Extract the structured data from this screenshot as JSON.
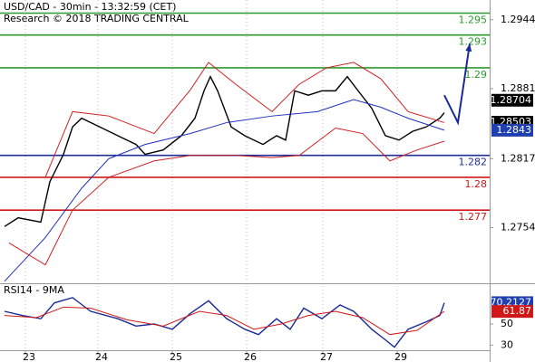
{
  "chart_data": [
    {
      "type": "line",
      "title": "USD/CAD - 30min - 13:32:59 (CET)",
      "subtitle": "Research © 2018 TRADING CENTRAL",
      "xlim": [
        0,
        108
      ],
      "ylim": [
        1.2704,
        1.2962
      ],
      "yticks": [
        1.2944,
        1.2881,
        1.2817,
        1.2754
      ],
      "xticks": [
        {
          "value": 5.6,
          "label": "23"
        },
        {
          "value": 21.6,
          "label": "24"
        },
        {
          "value": 38,
          "label": "25"
        },
        {
          "value": 54.4,
          "label": "26"
        },
        {
          "value": 71.2,
          "label": "27"
        },
        {
          "value": 87.6,
          "label": "29"
        }
      ],
      "levels": [
        {
          "value": 1.295,
          "color": "#2e9a2e"
        },
        {
          "value": 1.293,
          "color": "#2e9a2e"
        },
        {
          "value": 1.29,
          "color": "#2e9a2e"
        },
        {
          "value": 1.282,
          "color": "#1f2f9a"
        },
        {
          "value": 1.28,
          "color": "#d01818"
        },
        {
          "value": 1.277,
          "color": "#d01818"
        }
      ],
      "price_tags": [
        {
          "value": 1.28704,
          "color": "#000000"
        },
        {
          "value": 1.28503,
          "color": "#000000"
        },
        {
          "value": 1.2843,
          "color": "#1f3fb0"
        }
      ],
      "series": [
        {
          "name": "Price",
          "color": "#000000",
          "x": [
            1,
            4,
            9,
            11,
            14,
            16,
            18,
            22,
            26,
            30,
            32,
            36,
            40,
            43,
            45,
            46.4,
            48,
            51,
            54,
            58,
            61,
            63,
            65,
            68,
            71,
            74,
            76.6,
            79,
            82,
            85,
            88,
            91,
            94,
            97,
            98
          ],
          "values": [
            1.2755,
            1.2763,
            1.2759,
            1.2796,
            1.2821,
            1.2846,
            1.2854,
            1.2846,
            1.2838,
            1.283,
            1.2821,
            1.2825,
            1.2838,
            1.2854,
            1.2879,
            1.2892,
            1.2879,
            1.2846,
            1.2838,
            1.283,
            1.2838,
            1.2834,
            1.2879,
            1.2875,
            1.2879,
            1.2879,
            1.2892,
            1.2879,
            1.2863,
            1.2838,
            1.2834,
            1.2842,
            1.2846,
            1.2854,
            1.2859
          ]
        },
        {
          "name": "Moving average",
          "color": "#2030c0",
          "x": [
            1,
            10,
            18,
            24,
            32,
            42,
            50,
            60,
            70,
            78,
            84,
            90,
            98
          ],
          "values": [
            1.2705,
            1.2745,
            1.279,
            1.2817,
            1.283,
            1.284,
            1.285,
            1.2856,
            1.286,
            1.2871,
            1.2864,
            1.2854,
            1.2843
          ]
        },
        {
          "name": "Upper band",
          "color": "#d02020",
          "x": [
            10,
            16,
            24,
            34,
            42,
            46,
            52,
            60,
            66,
            72,
            78,
            84,
            90,
            98
          ],
          "values": [
            1.28,
            1.286,
            1.2856,
            1.284,
            1.288,
            1.2905,
            1.2885,
            1.286,
            1.2885,
            1.29,
            1.2905,
            1.289,
            1.286,
            1.285
          ]
        },
        {
          "name": "Lower band",
          "color": "#d02020",
          "x": [
            2,
            10,
            16,
            24,
            34,
            42,
            52,
            60,
            66,
            74,
            80,
            86,
            92,
            98
          ],
          "values": [
            1.274,
            1.272,
            1.277,
            1.28,
            1.2815,
            1.282,
            1.282,
            1.2818,
            1.282,
            1.2845,
            1.284,
            1.2815,
            1.2825,
            1.2833
          ]
        },
        {
          "name": "Forecast",
          "color": "#1a2a9a",
          "x": [
            98,
            101,
            103.6
          ],
          "values": [
            1.2875,
            1.285,
            1.2922
          ]
        }
      ]
    },
    {
      "type": "line",
      "title": "RSI14 - 9MA",
      "xlim": [
        0,
        108
      ],
      "ylim": [
        26,
        86
      ],
      "yticks": [
        50,
        30
      ],
      "price_tags": [
        {
          "value": 70.2127,
          "color": "#1f3fb0"
        },
        {
          "value": 61.87,
          "color": "#d01818"
        }
      ],
      "series": [
        {
          "name": "RSI",
          "color": "#1a2a9a",
          "x": [
            1,
            5,
            9,
            12,
            16,
            20,
            26,
            30,
            34,
            38,
            42,
            46,
            50,
            54,
            57,
            61,
            64,
            67,
            71,
            75,
            78,
            82,
            85,
            87,
            90,
            94,
            97,
            98
          ],
          "values": [
            62,
            58,
            55,
            70,
            75,
            62,
            55,
            48,
            50,
            45,
            60,
            72,
            55,
            45,
            40,
            55,
            45,
            65,
            55,
            68,
            62,
            45,
            35,
            28,
            45,
            52,
            58,
            70
          ]
        },
        {
          "name": "RSI MA",
          "color": "#d01818",
          "x": [
            1,
            8,
            14,
            20,
            28,
            36,
            44,
            50,
            56,
            62,
            68,
            74,
            80,
            86,
            92,
            98
          ],
          "values": [
            58,
            56,
            66,
            65,
            54,
            48,
            62,
            58,
            45,
            50,
            58,
            62,
            56,
            40,
            44,
            62
          ]
        }
      ]
    }
  ]
}
